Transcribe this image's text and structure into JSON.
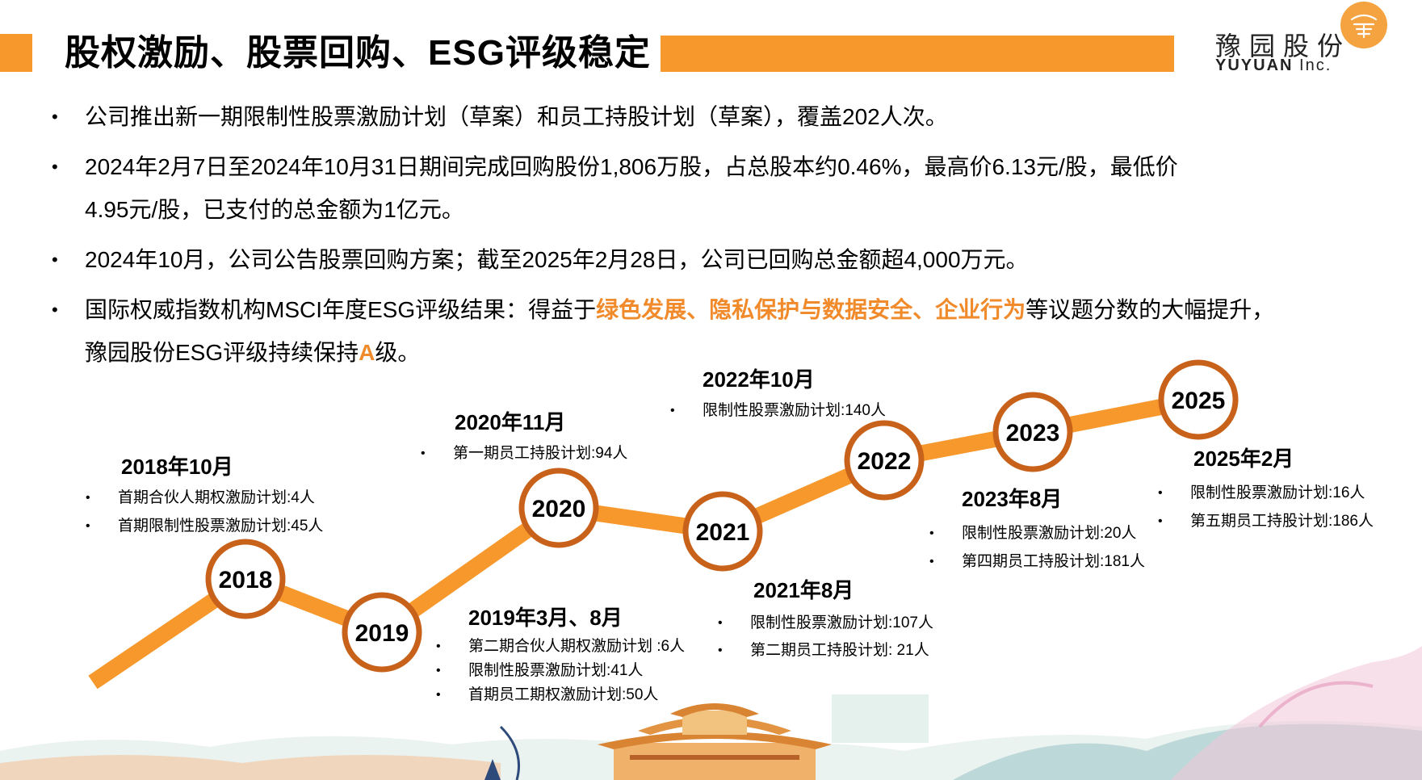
{
  "header": {
    "title": "股权激励、股票回购、ESG评级稳定",
    "logo_cn": "豫园股份",
    "logo_en": "YUYUAN",
    "logo_inc": "Inc."
  },
  "bullets": [
    {
      "parts": [
        "公司推出新一期限制性股票激励计划（草案）和员工持股计划（草案），覆盖202人次。"
      ]
    },
    {
      "parts": [
        "2024年2月7日至2024年10月31日期间完成回购股份1,806万股，占总股本约0.46%，最高价6.13元/股，最低价",
        "4.95元/股，已支付的总金额为1亿元。"
      ]
    },
    {
      "parts": [
        "2024年10月，公司公告股票回购方案；截至2025年2月28日，公司已回购总金额超4,000万元。"
      ]
    },
    {
      "prefix": "国际权威指数机构MSCI年度ESG评级结果：得益于",
      "highlight": "绿色发展、隐私保护与数据安全、企业行为",
      "middle": "等议题分数的大幅提升，",
      "line2_prefix": "豫园股份ESG评级持续保持",
      "highlight2": "A",
      "suffix": "级。"
    }
  ],
  "timeline": {
    "years": [
      "2018",
      "2019",
      "2020",
      "2021",
      "2022",
      "2023",
      "2025"
    ],
    "events": [
      {
        "title": "2018年10月",
        "items": [
          "首期合伙人期权激励计划:4人",
          "首期限制性股票激励计划:45人"
        ]
      },
      {
        "title": "2019年3月、8月",
        "items": [
          "第二期合伙人期权激励计划 :6人",
          "限制性股票激励计划:41人",
          "首期员工期权激励计划:50人"
        ]
      },
      {
        "title": "2020年11月",
        "items": [
          "第一期员工持股计划:94人"
        ]
      },
      {
        "title": "2021年8月",
        "items": [
          "限制性股票激励计划:107人",
          "第二期员工持股计划: 21人"
        ]
      },
      {
        "title": "2022年10月",
        "items": [
          "限制性股票激励计划:140人"
        ]
      },
      {
        "title": "2023年8月",
        "items": [
          "限制性股票激励计划:20人",
          "第四期员工持股计划:181人"
        ]
      },
      {
        "title": "2025年2月",
        "items": [
          "限制性股票激励计划:16人",
          "第五期员工持股计划:186人"
        ]
      }
    ]
  },
  "colors": {
    "accent": "#f7982d",
    "circle_border": "#c8621a",
    "highlight": "#f18a2b"
  }
}
